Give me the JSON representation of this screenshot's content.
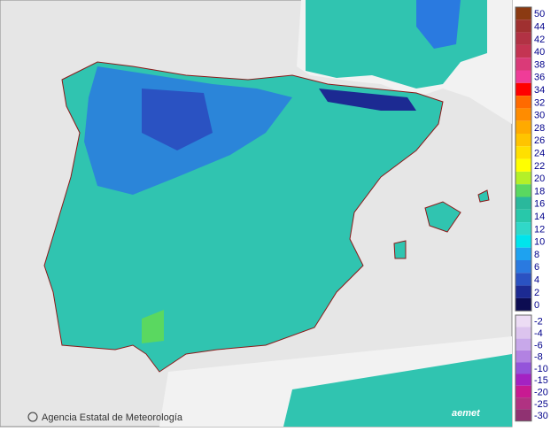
{
  "legend": {
    "upper": [
      {
        "label": 50,
        "color": "#8b3a12"
      },
      {
        "label": 44,
        "color": "#a03030"
      },
      {
        "label": 42,
        "color": "#b23244"
      },
      {
        "label": 40,
        "color": "#c43452"
      },
      {
        "label": 38,
        "color": "#da3a78"
      },
      {
        "label": 36,
        "color": "#f03c98"
      },
      {
        "label": 34,
        "color": "#ff0000"
      },
      {
        "label": 32,
        "color": "#ff6a00"
      },
      {
        "label": 30,
        "color": "#ff8c00"
      },
      {
        "label": 28,
        "color": "#ffaa00"
      },
      {
        "label": 26,
        "color": "#ffc400"
      },
      {
        "label": 24,
        "color": "#ffe000"
      },
      {
        "label": 22,
        "color": "#ffff00"
      },
      {
        "label": 20,
        "color": "#b4f028"
      },
      {
        "label": 18,
        "color": "#5ad860"
      },
      {
        "label": 16,
        "color": "#2ab89c"
      },
      {
        "label": 14,
        "color": "#28c8aa"
      },
      {
        "label": 12,
        "color": "#30d8c8"
      },
      {
        "label": 10,
        "color": "#00e4ec"
      },
      {
        "label": 8,
        "color": "#1ea2f0"
      },
      {
        "label": 6,
        "color": "#2a7ae0"
      },
      {
        "label": 4,
        "color": "#2a52c2"
      },
      {
        "label": 2,
        "color": "#1c2a92"
      },
      {
        "label": 0,
        "color": "#0c0c52"
      }
    ],
    "lower": [
      {
        "label": -2,
        "color": "#ecdcf4"
      },
      {
        "label": -4,
        "color": "#dcc4ee"
      },
      {
        "label": -6,
        "color": "#c8a8ea"
      },
      {
        "label": -8,
        "color": "#b282e2"
      },
      {
        "label": -10,
        "color": "#9454da"
      },
      {
        "label": -15,
        "color": "#a422c2"
      },
      {
        "label": -20,
        "color": "#c81a92"
      },
      {
        "label": -25,
        "color": "#b03282"
      },
      {
        "label": -30,
        "color": "#903272"
      }
    ]
  },
  "credit": "Agencia Estatal de Meteorología",
  "logo": "aemet"
}
